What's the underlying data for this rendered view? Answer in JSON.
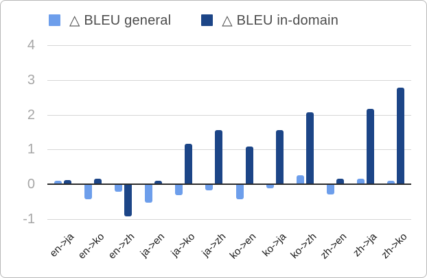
{
  "legend": {
    "items": [
      {
        "label": "△ BLEU general",
        "color": "#6d9eeb"
      },
      {
        "label": "△ BLEU in-domain",
        "color": "#1c4587"
      }
    ]
  },
  "chart_data": {
    "type": "bar",
    "title": "",
    "xlabel": "",
    "ylabel": "",
    "categories": [
      "en->ja",
      "en->ko",
      "en->zh",
      "ja->en",
      "ja->ko",
      "ja->zh",
      "ko->en",
      "ko->ja",
      "ko->zh",
      "zh->en",
      "zh->ja",
      "zh->ko"
    ],
    "series": [
      {
        "name": "△ BLEU general",
        "color": "#6d9eeb",
        "values": [
          0.1,
          -0.4,
          -0.2,
          -0.5,
          -0.3,
          -0.15,
          -0.4,
          -0.1,
          0.26,
          -0.27,
          0.17,
          0.1
        ]
      },
      {
        "name": "△ BLEU in-domain",
        "color": "#1c4587",
        "values": [
          0.12,
          0.17,
          -0.9,
          0.1,
          1.17,
          1.55,
          1.08,
          1.56,
          2.07,
          0.17,
          2.17,
          2.77
        ]
      }
    ],
    "yticks": [
      4,
      3,
      2,
      1,
      0,
      -1
    ],
    "ylim": [
      -1,
      4
    ],
    "grid": true,
    "legend_position": "top",
    "zero_line": true,
    "x_label_rotation_deg": -45
  },
  "colors": {
    "grid": "#d6d6d6",
    "zero_line": "#2b2b2b",
    "y_tick_text": "#a6a6a6",
    "x_tick_text": "#1a1a1a",
    "legend_text": "#4c4c4c",
    "border": "#b7b7b7",
    "background": "#ffffff"
  }
}
